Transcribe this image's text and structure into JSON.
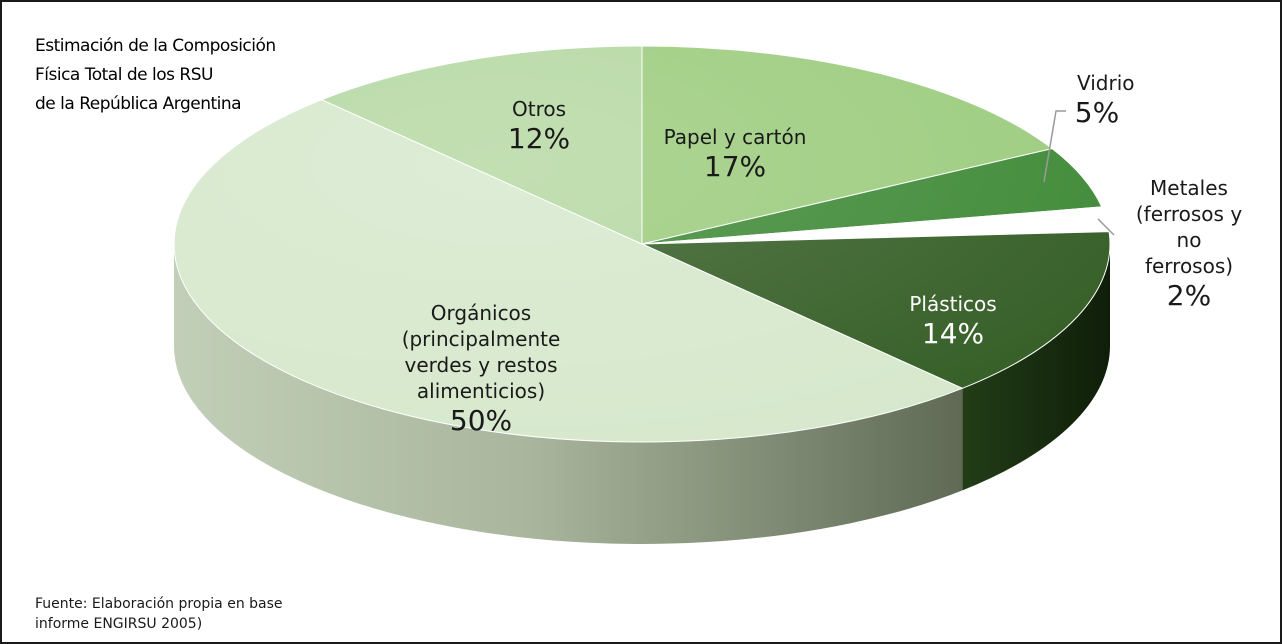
{
  "chart_data": {
    "type": "pie",
    "title_lines": [
      "Estimación de la Composición",
      "Física Total de los RSU",
      "de la República Argentina"
    ],
    "slices": [
      {
        "label_lines": [
          "Papel y cartón"
        ],
        "value": 17,
        "value_label": "17%",
        "color": "#9ccc7e"
      },
      {
        "label_lines": [
          "Vidrio"
        ],
        "value": 5,
        "value_label": "5%",
        "color": "#3f8a37"
      },
      {
        "label_lines": [
          "Metales",
          "(ferrosos y",
          "no",
          "ferrosos)"
        ],
        "value": 2,
        "value_label": "2%",
        "color": "#ffffff"
      },
      {
        "label_lines": [
          "Plásticos"
        ],
        "value": 14,
        "value_label": "14%",
        "color": "#355e26"
      },
      {
        "label_lines": [
          "Orgánicos",
          "(principalmente",
          "verdes y restos",
          "alimenticios)"
        ],
        "value": 50,
        "value_label": "50%",
        "color": "#d6e8cc"
      },
      {
        "label_lines": [
          "Otros"
        ],
        "value": 12,
        "value_label": "12%",
        "color": "#b5d8a2"
      }
    ],
    "source_lines": [
      "Fuente: Elaboración propia en base",
      "informe ENGIRSU 2005)"
    ]
  }
}
